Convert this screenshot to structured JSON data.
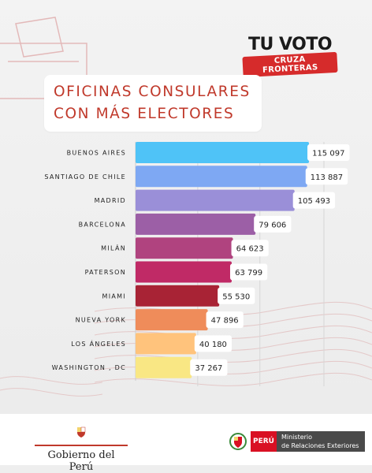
{
  "brand": {
    "line1": "TU VOTO",
    "line2": "CRUZA FRONTERAS"
  },
  "title": {
    "line1": "OFICINAS CONSULARES",
    "line2": "CON MÁS ELECTORES"
  },
  "chart_data": {
    "type": "bar",
    "orientation": "horizontal",
    "title": "OFICINAS CONSULARES CON MÁS ELECTORES",
    "categories": [
      "BUENOS AIRES",
      "SANTIAGO DE CHILE",
      "MADRID",
      "BARCELONA",
      "MILÁN",
      "PATERSON",
      "MIAMI",
      "NUEVA YORK",
      "LOS ÁNGELES",
      "WASHINGTON , DC"
    ],
    "values": [
      115097,
      113887,
      105493,
      79606,
      64623,
      63799,
      55530,
      47896,
      40180,
      37267
    ],
    "value_labels": [
      "115 097",
      "113 887",
      "105 493",
      "79 606",
      "64 623",
      "63 799",
      "55 530",
      "47 896",
      "40 180",
      "37 267"
    ],
    "colors": [
      "#4fc3f7",
      "#7ea8f3",
      "#9a8fd8",
      "#9c5fa6",
      "#b0437f",
      "#c02a66",
      "#a82335",
      "#ef8c5a",
      "#ffc37c",
      "#f9e784"
    ],
    "xlim": [
      0,
      125000
    ],
    "grid": true
  },
  "footer": {
    "gov": "Gobierno del Perú",
    "peru": "PERÚ",
    "ministry_line1": "Ministerio",
    "ministry_line2": "de Relaciones Exteriores"
  }
}
